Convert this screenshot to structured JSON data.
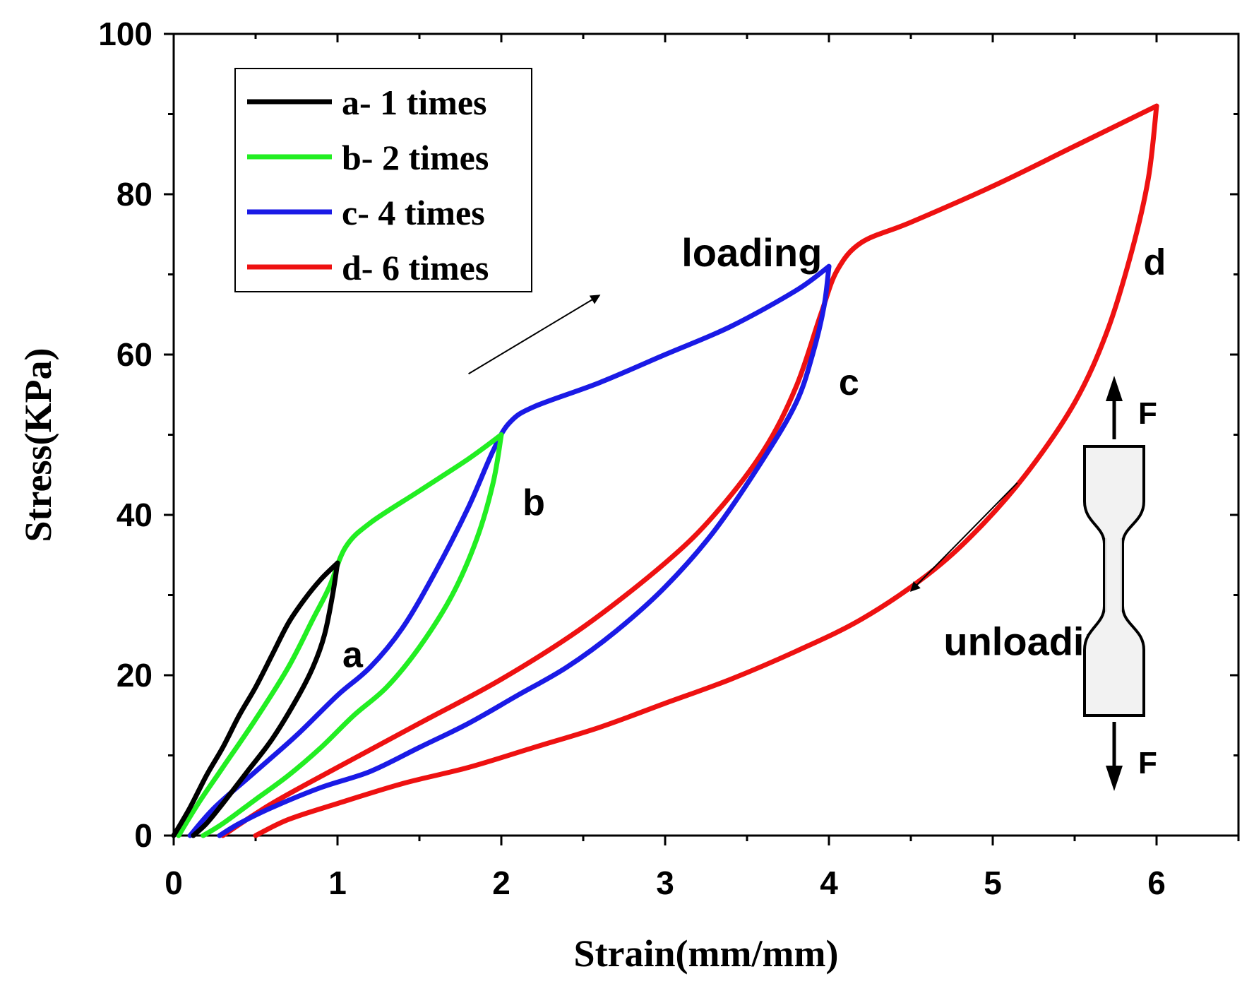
{
  "chart_data": {
    "type": "line",
    "title": "",
    "xlabel": "Strain(mm/mm)",
    "ylabel": "Stress(KPa)",
    "xlim": [
      0,
      6.5
    ],
    "ylim": [
      0,
      100
    ],
    "x_ticks": [
      0,
      1,
      2,
      3,
      4,
      5,
      6
    ],
    "x_tick_labels": [
      "0",
      "1",
      "2",
      "3",
      "4",
      "5",
      "6"
    ],
    "y_ticks": [
      0,
      20,
      40,
      60,
      80,
      100
    ],
    "y_tick_labels": [
      "0",
      "20",
      "40",
      "60",
      "80",
      "100"
    ],
    "legend_position": "top-left",
    "series": [
      {
        "name": "a- 1 times",
        "color": "#000000",
        "loading": [
          [
            0,
            0
          ],
          [
            0.1,
            3.5
          ],
          [
            0.2,
            7.5
          ],
          [
            0.3,
            11
          ],
          [
            0.4,
            15
          ],
          [
            0.5,
            18.5
          ],
          [
            0.6,
            22.5
          ],
          [
            0.7,
            26.5
          ],
          [
            0.8,
            29.5
          ],
          [
            0.9,
            32
          ],
          [
            1.0,
            34
          ]
        ],
        "unloading": [
          [
            1.0,
            34
          ],
          [
            0.97,
            30
          ],
          [
            0.92,
            25
          ],
          [
            0.85,
            21
          ],
          [
            0.75,
            17
          ],
          [
            0.6,
            12
          ],
          [
            0.45,
            8
          ],
          [
            0.3,
            4
          ],
          [
            0.2,
            1.5
          ],
          [
            0.12,
            0
          ]
        ]
      },
      {
        "name": "b- 2 times",
        "color": "#22ee22",
        "loading": [
          [
            0.03,
            0
          ],
          [
            0.15,
            4
          ],
          [
            0.3,
            8.5
          ],
          [
            0.5,
            14.5
          ],
          [
            0.7,
            21
          ],
          [
            0.85,
            27
          ],
          [
            0.95,
            31
          ],
          [
            1.05,
            36
          ],
          [
            1.2,
            39
          ],
          [
            1.5,
            43
          ],
          [
            1.8,
            47
          ],
          [
            2.0,
            50
          ]
        ],
        "unloading": [
          [
            2.0,
            50
          ],
          [
            1.95,
            44
          ],
          [
            1.85,
            37
          ],
          [
            1.7,
            30
          ],
          [
            1.5,
            23.5
          ],
          [
            1.3,
            18.5
          ],
          [
            1.1,
            15
          ],
          [
            0.9,
            11
          ],
          [
            0.7,
            7.5
          ],
          [
            0.5,
            4.5
          ],
          [
            0.3,
            1.5
          ],
          [
            0.18,
            0
          ]
        ]
      },
      {
        "name": "c- 4 times",
        "color": "#1a1ae6",
        "loading": [
          [
            0.1,
            0
          ],
          [
            0.25,
            3.5
          ],
          [
            0.5,
            8
          ],
          [
            0.75,
            12.5
          ],
          [
            1.0,
            17.5
          ],
          [
            1.2,
            21
          ],
          [
            1.4,
            26
          ],
          [
            1.6,
            33
          ],
          [
            1.8,
            41
          ],
          [
            1.95,
            48
          ],
          [
            2.05,
            51.5
          ],
          [
            2.2,
            53.5
          ],
          [
            2.6,
            56.5
          ],
          [
            3.0,
            60
          ],
          [
            3.4,
            63.5
          ],
          [
            3.8,
            68
          ],
          [
            4.0,
            71
          ]
        ],
        "unloading": [
          [
            4.0,
            71
          ],
          [
            3.97,
            66
          ],
          [
            3.9,
            60
          ],
          [
            3.8,
            54
          ],
          [
            3.6,
            47
          ],
          [
            3.3,
            38
          ],
          [
            3.0,
            31
          ],
          [
            2.7,
            25.5
          ],
          [
            2.4,
            21
          ],
          [
            2.1,
            17.5
          ],
          [
            1.8,
            14
          ],
          [
            1.5,
            11
          ],
          [
            1.2,
            8
          ],
          [
            0.9,
            6
          ],
          [
            0.6,
            3.5
          ],
          [
            0.4,
            1.5
          ],
          [
            0.28,
            0
          ]
        ]
      },
      {
        "name": "d- 6 times",
        "color": "#ee1111",
        "loading": [
          [
            0.3,
            0
          ],
          [
            0.6,
            4
          ],
          [
            1.0,
            8.5
          ],
          [
            1.5,
            14
          ],
          [
            2.0,
            19.5
          ],
          [
            2.5,
            26
          ],
          [
            3.0,
            34
          ],
          [
            3.3,
            40
          ],
          [
            3.6,
            48
          ],
          [
            3.8,
            56
          ],
          [
            3.95,
            65
          ],
          [
            4.05,
            70.5
          ],
          [
            4.2,
            74
          ],
          [
            4.5,
            76.5
          ],
          [
            5.0,
            81
          ],
          [
            5.5,
            86
          ],
          [
            6.0,
            91
          ]
        ],
        "unloading": [
          [
            6.0,
            91
          ],
          [
            5.95,
            82
          ],
          [
            5.85,
            73
          ],
          [
            5.7,
            63
          ],
          [
            5.5,
            54
          ],
          [
            5.2,
            45
          ],
          [
            4.9,
            38
          ],
          [
            4.6,
            32.5
          ],
          [
            4.2,
            27
          ],
          [
            3.8,
            23
          ],
          [
            3.4,
            19.5
          ],
          [
            3.0,
            16.5
          ],
          [
            2.6,
            13.5
          ],
          [
            2.2,
            11
          ],
          [
            1.8,
            8.5
          ],
          [
            1.4,
            6.5
          ],
          [
            1.0,
            4
          ],
          [
            0.7,
            2
          ],
          [
            0.5,
            0
          ]
        ]
      }
    ],
    "annotations": [
      {
        "text": "a",
        "x": 1.03,
        "y": 21
      },
      {
        "text": "b",
        "x": 2.13,
        "y": 40
      },
      {
        "text": "c",
        "x": 4.06,
        "y": 55
      },
      {
        "text": "d",
        "x": 5.92,
        "y": 70
      },
      {
        "text": "loading",
        "x": 3.1,
        "y": 71
      },
      {
        "text": "unloading",
        "x": 4.7,
        "y": 22.5
      }
    ],
    "arrows": [
      {
        "name": "loading",
        "from": [
          1.8,
          57.6
        ],
        "to": [
          2.6,
          67.4
        ]
      },
      {
        "name": "unloading",
        "from": [
          5.15,
          44
        ],
        "to": [
          4.5,
          30.5
        ]
      }
    ],
    "inset": {
      "force_label_top": "F",
      "force_label_bottom": "F"
    }
  }
}
